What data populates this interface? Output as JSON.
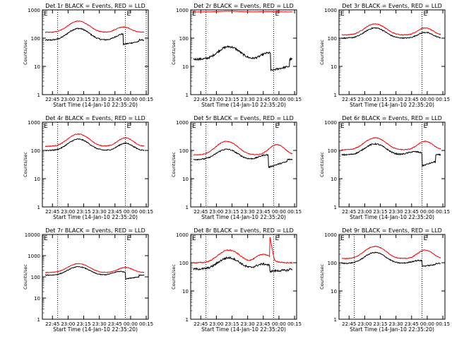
{
  "chart_data": [
    {
      "type": "line",
      "title": "Det 1r BLACK = Events, RED = LLD",
      "xlabel": "Start Time (14-Jan-10 22:35:20)",
      "ylabel": "Counts/sec",
      "yscale": "log",
      "ylim": [
        1,
        1000
      ],
      "yticks": [
        "1",
        "10",
        "100",
        "1000"
      ],
      "xticks": [
        "22:45",
        "23:00",
        "23:15",
        "23:30",
        "23:45",
        "00:00",
        "00:15"
      ],
      "xlim": [
        "22:35:20",
        "00:17"
      ],
      "vlines": [
        {
          "t": "22:50",
          "label": ""
        },
        {
          "t": "23:55",
          "label": "E"
        },
        {
          "t": "00:15",
          "label": ""
        }
      ],
      "corner_label": "E",
      "series": [
        {
          "color": "#000000",
          "profile": {
            "base": 85,
            "p1": 220,
            "p2": 140,
            "t1": "23:10",
            "t2": "23:53",
            "drops": [
              {
                "t0": "23:53",
                "t1": "00:08",
                "v0": 60,
                "v1": 75
              }
            ],
            "noise": 0.05
          }
        },
        {
          "color": "#ff0000",
          "profile": {
            "base": 160,
            "p1": 400,
            "p2": 250,
            "t1": "23:10",
            "t2": "23:53",
            "noise": 0.03
          }
        }
      ]
    },
    {
      "type": "line",
      "title": "Det 2r BLACK = Events, RED = LLD",
      "xlabel": "Start Time (14-Jan-10 22:35:20)",
      "ylabel": "Counts/sec",
      "yscale": "log",
      "ylim": [
        1,
        1000
      ],
      "yticks": [
        "1",
        "10",
        "100",
        "1000"
      ],
      "xticks": [
        "22:45",
        "23:00",
        "23:15",
        "23:30",
        "23:45",
        "00:00",
        "00:15"
      ],
      "xlim": [
        "22:35:20",
        "00:17"
      ],
      "vlines": [
        {
          "t": "22:50",
          "label": ""
        },
        {
          "t": "23:55",
          "label": "E"
        }
      ],
      "corner_label": "E",
      "series": [
        {
          "color": "#000000",
          "profile": {
            "base": 18,
            "p1": 50,
            "p2": 30,
            "t1": "23:12",
            "t2": "23:50",
            "drops": [
              {
                "t0": "23:52",
                "t1": "00:10",
                "v0": 7,
                "v1": 10
              }
            ],
            "noise": 0.08
          }
        },
        {
          "color": "#ff0000",
          "profile": {
            "base": 850,
            "p1": 900,
            "p2": 870,
            "t1": "23:12",
            "t2": "23:50",
            "noise": 0.01
          }
        }
      ]
    },
    {
      "type": "line",
      "title": "Det 3r BLACK = Events, RED = LLD",
      "xlabel": "Start Time (14-Jan-10 22:35:20)",
      "ylabel": "Counts/sec",
      "yscale": "log",
      "ylim": [
        1,
        1000
      ],
      "yticks": [
        "1",
        "10",
        "100",
        "1000"
      ],
      "xticks": [
        "22:45",
        "23:00",
        "23:15",
        "23:30",
        "23:45",
        "00:00",
        "00:15"
      ],
      "xlim": [
        "22:35:20",
        "00:17"
      ],
      "vlines": [
        {
          "t": "23:55",
          "label": "E"
        }
      ],
      "corner_label": "E",
      "series": [
        {
          "color": "#000000",
          "profile": {
            "base": 100,
            "p1": 230,
            "p2": 160,
            "t1": "23:10",
            "t2": "23:58",
            "noise": 0.04
          }
        },
        {
          "color": "#ff0000",
          "profile": {
            "base": 130,
            "p1": 320,
            "p2": 230,
            "t1": "23:10",
            "t2": "23:58",
            "noise": 0.03
          }
        }
      ]
    },
    {
      "type": "line",
      "title": "Det 4r BLACK = Events, RED = LLD",
      "xlabel": "Start Time (14-Jan-10 22:35:20)",
      "ylabel": "Counts/sec",
      "yscale": "log",
      "ylim": [
        1,
        1000
      ],
      "yticks": [
        "1",
        "10",
        "100",
        "1000"
      ],
      "xticks": [
        "22:45",
        "23:00",
        "23:15",
        "23:30",
        "23:45",
        "00:00",
        "00:15"
      ],
      "xlim": [
        "22:35:20",
        "00:17"
      ],
      "vlines": [
        {
          "t": "22:50",
          "label": ""
        },
        {
          "t": "23:55",
          "label": "E"
        }
      ],
      "corner_label": "E",
      "series": [
        {
          "color": "#000000",
          "profile": {
            "base": 100,
            "p1": 250,
            "p2": 180,
            "t1": "23:10",
            "t2": "23:55",
            "noise": 0.04
          }
        },
        {
          "color": "#ff0000",
          "profile": {
            "base": 140,
            "p1": 380,
            "p2": 280,
            "t1": "23:10",
            "t2": "23:55",
            "noise": 0.03
          }
        }
      ]
    },
    {
      "type": "line",
      "title": "Det 5r BLACK = Events, RED = LLD",
      "xlabel": "Start Time (14-Jan-10 22:35:20)",
      "ylabel": "Counts/sec",
      "yscale": "log",
      "ylim": [
        1,
        1000
      ],
      "yticks": [
        "1",
        "10",
        "100",
        "1000"
      ],
      "xticks": [
        "22:45",
        "23:00",
        "23:15",
        "23:30",
        "23:45",
        "00:00",
        "00:15"
      ],
      "xlim": [
        "22:35:20",
        "00:17"
      ],
      "vlines": [
        {
          "t": "22:50",
          "label": ""
        },
        {
          "t": "23:55",
          "label": "E"
        }
      ],
      "corner_label": "E",
      "series": [
        {
          "color": "#000000",
          "profile": {
            "base": 48,
            "p1": 110,
            "p2": 70,
            "t1": "23:10",
            "t2": "23:48",
            "drops": [
              {
                "t0": "23:50",
                "t1": "00:08",
                "v0": 25,
                "v1": 40
              }
            ],
            "noise": 0.05
          }
        },
        {
          "color": "#ff0000",
          "profile": {
            "base": 70,
            "p1": 210,
            "p2": 160,
            "t1": "23:10",
            "t2": "23:58",
            "noise": 0.03
          }
        }
      ]
    },
    {
      "type": "line",
      "title": "Det 6r BLACK = Events, RED = LLD",
      "xlabel": "Start Time (14-Jan-10 22:35:20)",
      "ylabel": "Counts/sec",
      "yscale": "log",
      "ylim": [
        1,
        1000
      ],
      "yticks": [
        "1",
        "10",
        "100",
        "1000"
      ],
      "xticks": [
        "22:45",
        "23:00",
        "23:15",
        "23:30",
        "23:45",
        "00:00",
        "00:15"
      ],
      "xlim": [
        "22:35:20",
        "00:17"
      ],
      "vlines": [
        {
          "t": "23:55",
          "label": "E"
        }
      ],
      "corner_label": "E",
      "series": [
        {
          "color": "#000000",
          "profile": {
            "base": 70,
            "p1": 170,
            "p2": 90,
            "t1": "23:10",
            "t2": "23:48",
            "drops": [
              {
                "t0": "23:55",
                "t1": "00:08",
                "v0": 28,
                "v1": 40
              }
            ],
            "noise": 0.05
          }
        },
        {
          "color": "#ff0000",
          "profile": {
            "base": 105,
            "p1": 280,
            "p2": 210,
            "t1": "23:10",
            "t2": "23:58",
            "noise": 0.03
          }
        }
      ]
    },
    {
      "type": "line",
      "title": "Det 7r BLACK = Events, RED = LLD",
      "xlabel": "Start Time (14-Jan-10 22:35:20)",
      "ylabel": "Counts/sec",
      "yscale": "log",
      "ylim": [
        1,
        10000
      ],
      "yticks": [
        "1",
        "10",
        "100",
        "1000",
        "10000"
      ],
      "xticks": [
        "22:45",
        "23:00",
        "23:15",
        "23:30",
        "23:45",
        "00:00",
        "00:15"
      ],
      "xlim": [
        "22:35:20",
        "00:17"
      ],
      "vlines": [
        {
          "t": "22:50",
          "label": ""
        },
        {
          "t": "23:55",
          "label": "E"
        }
      ],
      "corner_label": "E",
      "series": [
        {
          "color": "#000000",
          "profile": {
            "base": 120,
            "p1": 300,
            "p2": 180,
            "t1": "23:10",
            "t2": "23:50",
            "drops": [
              {
                "t0": "23:55",
                "t1": "00:08",
                "v0": 80,
                "v1": 100
              }
            ],
            "noise": 0.04
          }
        },
        {
          "color": "#ff0000",
          "profile": {
            "base": 160,
            "p1": 420,
            "p2": 280,
            "t1": "23:10",
            "t2": "23:55",
            "noise": 0.03
          }
        }
      ]
    },
    {
      "type": "line",
      "title": "Det 8r BLACK = Events, RED = LLD",
      "xlabel": "Start Time (14-Jan-10 22:35:20)",
      "ylabel": "Counts/sec",
      "yscale": "log",
      "ylim": [
        1,
        1000
      ],
      "yticks": [
        "1",
        "10",
        "100",
        "1000"
      ],
      "xticks": [
        "22:45",
        "23:00",
        "23:15",
        "23:30",
        "23:45",
        "00:00",
        "00:15"
      ],
      "xlim": [
        "22:35:20",
        "00:17"
      ],
      "vlines": [
        {
          "t": "22:50",
          "label": ""
        },
        {
          "t": "23:55",
          "label": "E"
        }
      ],
      "corner_label": "E",
      "series": [
        {
          "color": "#000000",
          "profile": {
            "base": 60,
            "p1": 150,
            "p2": 90,
            "t1": "23:12",
            "t2": "23:45",
            "drops": [
              {
                "t0": "23:51",
                "t1": "00:10",
                "v0": 50,
                "v1": 55
              }
            ],
            "noise": 0.08
          }
        },
        {
          "color": "#ff0000",
          "profile": {
            "base": 100,
            "p1": 280,
            "p2": 200,
            "t1": "23:12",
            "t2": "23:45",
            "spike": {
              "t": "23:51",
              "peak": 1000
            },
            "noise": 0.04
          }
        }
      ]
    },
    {
      "type": "line",
      "title": "Det 9r BLACK = Events, RED = LLD",
      "xlabel": "Start Time (14-Jan-10 22:35:20)",
      "ylabel": "Counts/sec",
      "yscale": "log",
      "ylim": [
        1,
        1000
      ],
      "yticks": [
        "1",
        "10",
        "100",
        "1000"
      ],
      "xticks": [
        "22:45",
        "23:00",
        "23:15",
        "23:30",
        "23:45",
        "00:00",
        "00:15"
      ],
      "xlim": [
        "22:35:20",
        "00:17"
      ],
      "vlines": [
        {
          "t": "22:50",
          "label": ""
        },
        {
          "t": "23:55",
          "label": "E"
        }
      ],
      "corner_label": "E",
      "series": [
        {
          "color": "#000000",
          "profile": {
            "base": 95,
            "p1": 230,
            "p2": 120,
            "t1": "23:10",
            "t2": "23:52",
            "drops": [
              {
                "t0": "23:55",
                "t1": "00:08",
                "v0": 75,
                "v1": 85
              }
            ],
            "noise": 0.04
          }
        },
        {
          "color": "#ff0000",
          "profile": {
            "base": 140,
            "p1": 380,
            "p2": 280,
            "t1": "23:10",
            "t2": "23:58",
            "noise": 0.03
          }
        }
      ]
    }
  ]
}
